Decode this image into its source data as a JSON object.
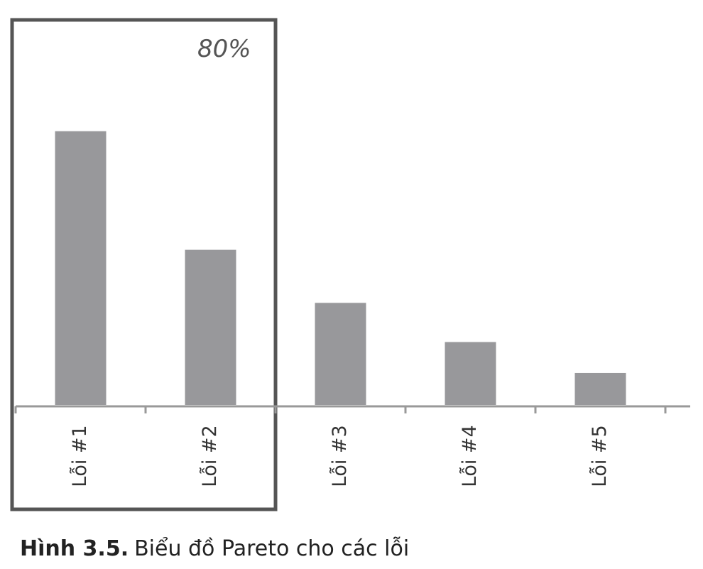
{
  "chart_data": {
    "type": "bar",
    "categories": [
      "Lỗi #1",
      "Lỗi #2",
      "Lỗi #3",
      "Lỗi #4",
      "Lỗi #5"
    ],
    "values": [
      72.7,
      41.2,
      27.1,
      16.7,
      8.5
    ],
    "color": "#98989b",
    "ylim": [
      0,
      100
    ],
    "annotation": "80%",
    "caption_label": "Hình 3.5.",
    "caption_text": "Biểu đồ Pareto cho các lỗi"
  }
}
